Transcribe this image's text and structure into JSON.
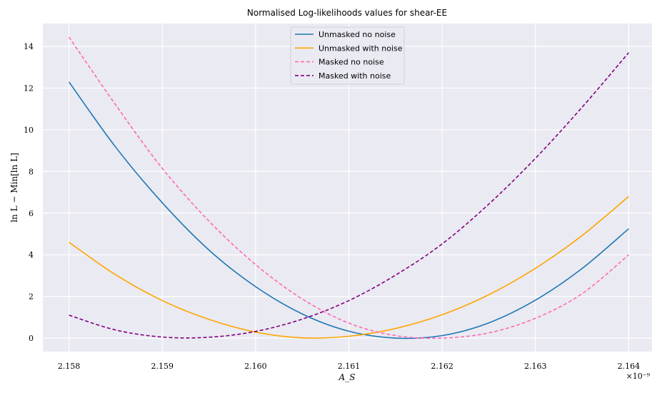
{
  "chart_data": {
    "type": "line",
    "title": "Normalised Log-likelihoods values for shear-EE",
    "xlabel": "A_S",
    "ylabel": "ln L − Min[ln L]",
    "x_scale_label": "×10⁻⁹",
    "xlim": [
      2.15772,
      2.16425
    ],
    "ylim": [
      -0.65,
      15.1
    ],
    "xticks": [
      2.158,
      2.159,
      2.16,
      2.161,
      2.162,
      2.163,
      2.164
    ],
    "xtick_labels": [
      "2.158",
      "2.159",
      "2.160",
      "2.161",
      "2.162",
      "2.163",
      "2.164"
    ],
    "yticks": [
      0,
      2,
      4,
      6,
      8,
      10,
      12,
      14
    ],
    "ytick_labels": [
      "0",
      "2",
      "4",
      "6",
      "8",
      "10",
      "12",
      "14"
    ],
    "grid": true,
    "legend_position": "top-center",
    "x": [
      2.158,
      2.1585,
      2.159,
      2.1595,
      2.16,
      2.1605,
      2.161,
      2.1615,
      2.162,
      2.1625,
      2.163,
      2.1635,
      2.164
    ],
    "series": [
      {
        "name": "Unmasked no noise",
        "color": "#1f77b4",
        "style": "solid",
        "values": [
          12.3,
          9.17,
          6.5,
          4.23,
          2.47,
          1.16,
          0.33,
          0.0,
          0.12,
          0.73,
          1.82,
          3.34,
          5.25
        ]
      },
      {
        "name": "Unmasked with noise",
        "color": "#ffa500",
        "style": "solid",
        "values": [
          4.6,
          3.04,
          1.8,
          0.9,
          0.29,
          0.01,
          0.09,
          0.46,
          1.12,
          2.08,
          3.35,
          4.92,
          6.8
        ]
      },
      {
        "name": "Masked no noise",
        "color": "#ff69b4",
        "style": "dashed",
        "values": [
          14.45,
          11.2,
          8.15,
          5.62,
          3.53,
          1.88,
          0.72,
          0.12,
          0.0,
          0.25,
          0.95,
          2.13,
          4.0
        ]
      },
      {
        "name": "Masked with noise",
        "color": "#800080",
        "style": "dashed",
        "values": [
          1.1,
          0.39,
          0.05,
          0.04,
          0.32,
          0.91,
          1.8,
          3.02,
          4.52,
          6.43,
          8.63,
          11.08,
          13.7
        ]
      }
    ]
  }
}
